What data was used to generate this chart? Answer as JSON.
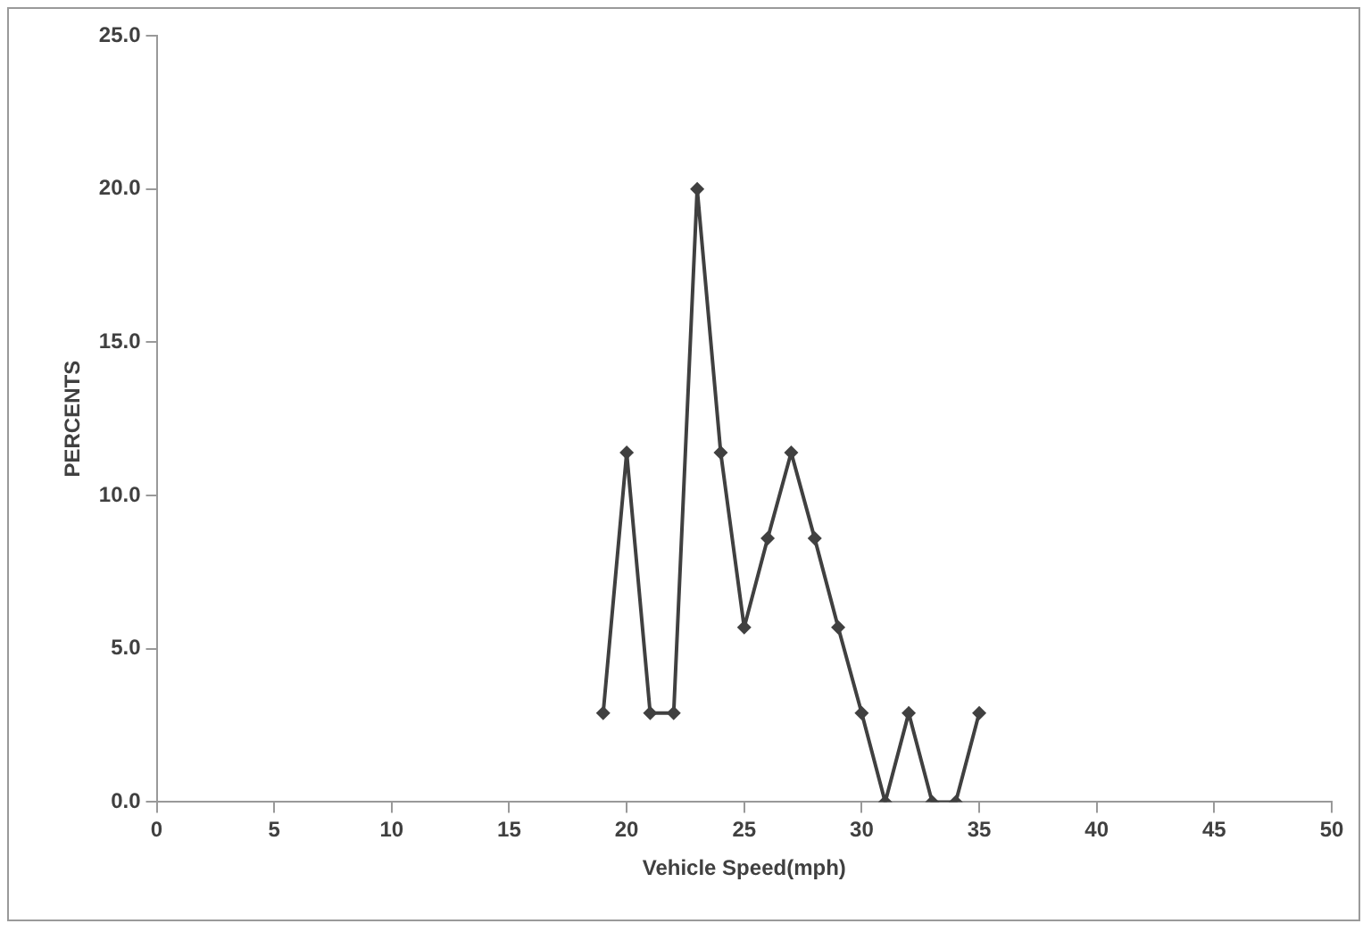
{
  "chart_data": {
    "type": "line",
    "xlabel": "Vehicle Speed(mph)",
    "ylabel": "PERCENTS",
    "x": [
      19,
      20,
      21,
      22,
      23,
      24,
      25,
      26,
      27,
      28,
      29,
      30,
      31,
      32,
      33,
      34,
      35
    ],
    "series": [
      {
        "color": "#404040",
        "values": [
          2.9,
          11.4,
          2.9,
          2.9,
          20.0,
          11.4,
          5.7,
          8.6,
          11.4,
          8.6,
          5.7,
          2.9,
          0.0,
          2.9,
          0.0,
          0.0,
          2.9
        ]
      }
    ],
    "xlim": [
      0,
      50
    ],
    "xticks": [
      0,
      5,
      10,
      15,
      20,
      25,
      30,
      35,
      40,
      45,
      50
    ],
    "ylim": [
      0,
      25
    ],
    "yticks": [
      {
        "value": 0,
        "label": "0.0"
      },
      {
        "value": 5,
        "label": "5.0"
      },
      {
        "value": 10,
        "label": "10.0"
      },
      {
        "value": 15,
        "label": "15.0"
      },
      {
        "value": 20,
        "label": "20.0"
      },
      {
        "value": 25,
        "label": "25.0"
      }
    ],
    "grid": false,
    "legend": false,
    "marker": "diamond",
    "line_style": "solid"
  }
}
